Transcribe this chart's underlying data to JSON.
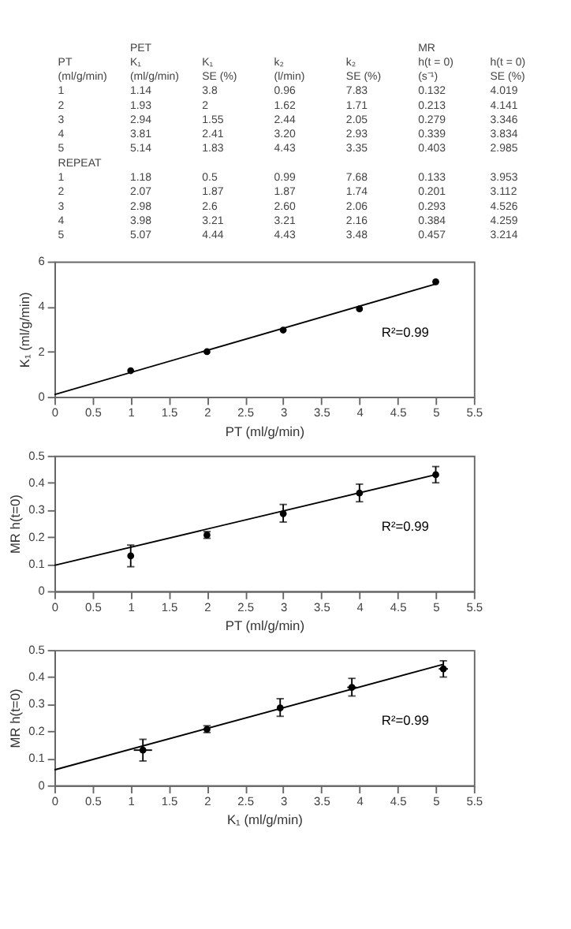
{
  "chart_data": [
    {
      "type": "other",
      "annotations": [
        "PET",
        "MR"
      ],
      "categories": [
        "PT\n(ml/g/min)",
        "K₁\n(ml/g/min)",
        "K₁\nSE (%)",
        "k₂\n(l/min)",
        "k₂\nSE (%)",
        "h(t = 0)\n(s⁻¹)",
        "h(t = 0)\nSE (%)"
      ],
      "cells": [
        [
          "1",
          "1.14",
          "3.8",
          "0.96",
          "7.83",
          "0.132",
          "4.019"
        ],
        [
          "2",
          "1.93",
          "2",
          "1.62",
          "1.71",
          "0.213",
          "4.141"
        ],
        [
          "3",
          "2.94",
          "1.55",
          "2.44",
          "2.05",
          "0.279",
          "3.346"
        ],
        [
          "4",
          "3.81",
          "2.41",
          "3.20",
          "2.93",
          "0.339",
          "3.834"
        ],
        [
          "5",
          "5.14",
          "1.83",
          "4.43",
          "3.35",
          "0.403",
          "2.985"
        ],
        [
          "REPEAT",
          null,
          null,
          null,
          null,
          null,
          null
        ],
        [
          "1",
          "1.18",
          "0.5",
          "0.99",
          "7.68",
          "0.133",
          "3.953"
        ],
        [
          "2",
          "2.07",
          "1.87",
          "1.87",
          "1.74",
          "0.201",
          "3.112"
        ],
        [
          "3",
          "2.98",
          "2.6",
          "2.60",
          "2.06",
          "0.293",
          "4.526"
        ],
        [
          "4",
          "3.98",
          "3.21",
          "3.21",
          "2.16",
          "0.384",
          "4.259"
        ],
        [
          "5",
          "5.07",
          "4.44",
          "4.43",
          "3.48",
          "0.457",
          "3.214"
        ]
      ]
    },
    {
      "type": "scatter",
      "xlabel": "PT (ml/g/min)",
      "ylabel": "K₁ (ml/g/min)",
      "annotations": [
        "R²=0.99"
      ],
      "xlim": [
        0,
        5.5
      ],
      "xticks": [
        0,
        0.5,
        1,
        1.5,
        2,
        2.5,
        3,
        3.5,
        4,
        4.5,
        5,
        5.5
      ],
      "ylim": [
        0,
        6
      ],
      "yticks": [
        0,
        2,
        4,
        6
      ],
      "grid": false,
      "legend": false,
      "series": [
        {
          "type": "scatter",
          "x": [
            1,
            2,
            3,
            4,
            5
          ],
          "values": [
            1.16,
            2.0,
            2.96,
            3.9,
            5.1
          ],
          "color": "#000000",
          "marker": "circle"
        },
        {
          "type": "line",
          "x": [
            0,
            5
          ],
          "values": [
            0.1,
            5.0
          ],
          "color": "#000000",
          "marker": "none"
        }
      ]
    },
    {
      "type": "scatter",
      "xlabel": "PT (ml/g/min)",
      "ylabel": "MR h(t=0)",
      "annotations": [
        "R²=0.99"
      ],
      "xlim": [
        0,
        5.5
      ],
      "xticks": [
        0,
        0.5,
        1,
        1.5,
        2,
        2.5,
        3,
        3.5,
        4,
        4.5,
        5,
        5.5
      ],
      "ylim": [
        0,
        0.5
      ],
      "yticks": [
        0,
        0.1,
        0.2,
        0.3,
        0.4,
        0.5
      ],
      "grid": false,
      "legend": false,
      "series": [
        {
          "type": "scatter",
          "x": [
            1,
            2,
            3,
            4,
            5
          ],
          "values": [
            0.13,
            0.207,
            0.286,
            0.362,
            0.43
          ],
          "errors": [
            [
              0.09,
              0.17
            ],
            [
              0.195,
              0.22
            ],
            [
              0.255,
              0.32
            ],
            [
              0.33,
              0.395
            ],
            [
              0.4,
              0.46
            ]
          ],
          "color": "#000000",
          "marker": "circle"
        },
        {
          "type": "line",
          "x": [
            0,
            5
          ],
          "values": [
            0.095,
            0.43
          ],
          "color": "#000000",
          "marker": "none"
        }
      ]
    },
    {
      "type": "scatter",
      "xlabel": "K₁ (ml/g/min)",
      "ylabel": "MR h(t=0)",
      "annotations": [
        "R²=0.99"
      ],
      "xlim": [
        0,
        5.5
      ],
      "xticks": [
        0,
        0.5,
        1,
        1.5,
        2,
        2.5,
        3,
        3.5,
        4,
        4.5,
        5,
        5.5
      ],
      "ylim": [
        0,
        0.5
      ],
      "yticks": [
        0,
        0.1,
        0.2,
        0.3,
        0.4,
        0.5
      ],
      "grid": false,
      "legend": false,
      "series": [
        {
          "type": "scatter",
          "x": [
            1.16,
            2.0,
            2.96,
            3.9,
            5.1
          ],
          "values": [
            0.13,
            0.207,
            0.286,
            0.362,
            0.43
          ],
          "errors": [
            [
              0.09,
              0.17
            ],
            [
              0.195,
              0.22
            ],
            [
              0.255,
              0.32
            ],
            [
              0.33,
              0.395
            ],
            [
              0.4,
              0.46
            ]
          ],
          "xerrors": [
            0.12,
            0.04,
            0.04,
            0.06,
            0.06
          ],
          "color": "#000000",
          "marker": "circle"
        },
        {
          "type": "line",
          "x": [
            0,
            5.1
          ],
          "values": [
            0.057,
            0.447
          ],
          "color": "#000000",
          "marker": "none"
        }
      ]
    }
  ]
}
